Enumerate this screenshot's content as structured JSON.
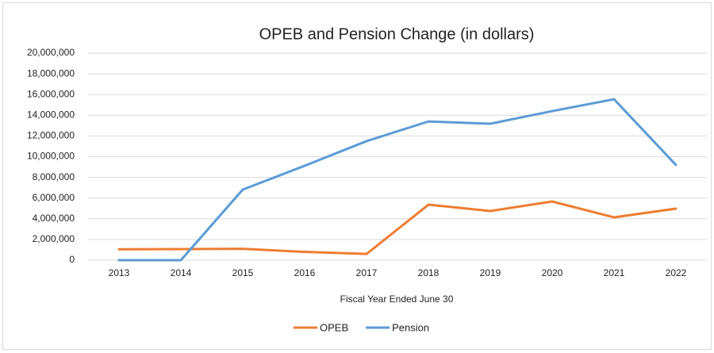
{
  "chart_data": {
    "type": "line",
    "title": "OPEB and Pension Change (in dollars)",
    "x_label": "Fiscal Year Ended June 30",
    "categories": [
      "2013",
      "2014",
      "2015",
      "2016",
      "2017",
      "2018",
      "2019",
      "2020",
      "2021",
      "2022"
    ],
    "series": [
      {
        "name": "OPEB",
        "color": "#ed7d31",
        "values": [
          1050000,
          1070000,
          1100000,
          800000,
          600000,
          5360000,
          4750000,
          5670000,
          4140000,
          4980000
        ]
      },
      {
        "name": "Pension",
        "color": "#5b9bd5",
        "values": [
          0,
          0,
          6820000,
          9120000,
          11500000,
          13400000,
          13180000,
          14400000,
          15550000,
          9200000
        ]
      }
    ],
    "ylim": [
      0,
      20000000
    ],
    "yticks": [
      0,
      {
        "value": 2000000,
        "label": "2,000,000"
      },
      {
        "value": 4000000,
        "label": "4,000,000"
      },
      {
        "value": 6000000,
        "label": "6,000,000"
      },
      {
        "value": 8000000,
        "label": "8,000,000"
      },
      {
        "value": 10000000,
        "label": "10,000,000"
      },
      {
        "value": 12000000,
        "label": "12,000,000"
      },
      {
        "value": 14000000,
        "label": "14,000,000"
      },
      {
        "value": 16000000,
        "label": "16,000,000"
      },
      {
        "value": 18000000,
        "label": "18,000,000"
      },
      {
        "value": 20000000,
        "label": "20,000,000"
      }
    ],
    "grid": true,
    "legend": "bottom"
  }
}
